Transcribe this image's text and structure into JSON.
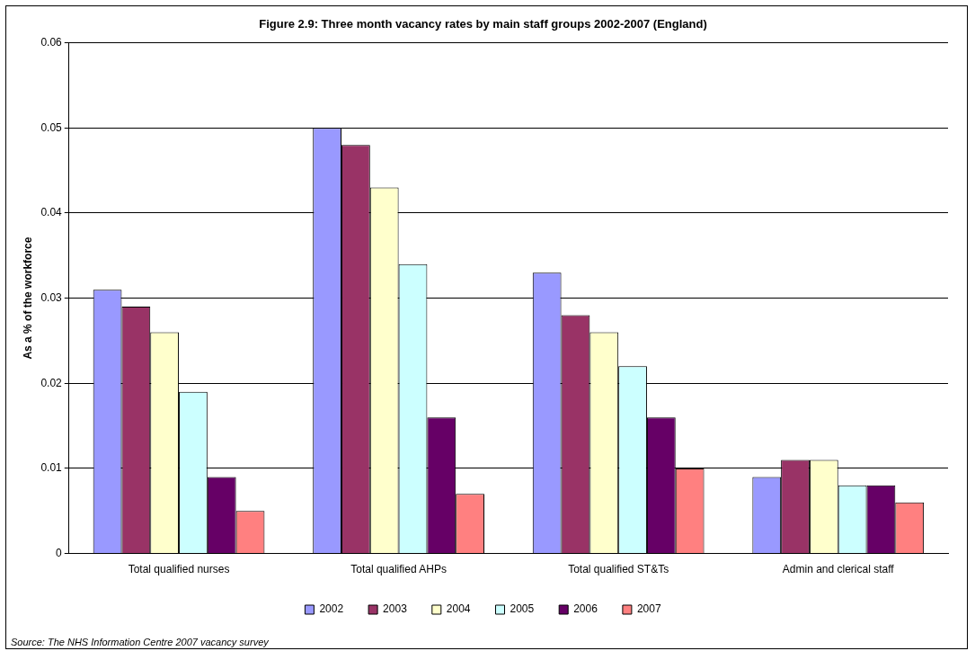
{
  "chart_data": {
    "type": "bar",
    "title": "Figure 2.9: Three month vacancy rates by main staff groups 2002-2007 (England)",
    "ylabel": "As a % of the workforce",
    "categories": [
      "Total qualified nurses",
      "Total qualified AHPs",
      "Total qualified ST&Ts",
      "Admin and clerical staff"
    ],
    "series": [
      {
        "name": "2002",
        "color": "#9999ff",
        "values": [
          0.031,
          0.05,
          0.033,
          0.009
        ]
      },
      {
        "name": "2003",
        "color": "#993366",
        "values": [
          0.029,
          0.048,
          0.028,
          0.011
        ]
      },
      {
        "name": "2004",
        "color": "#ffffcc",
        "values": [
          0.026,
          0.043,
          0.026,
          0.011
        ]
      },
      {
        "name": "2005",
        "color": "#ccffff",
        "values": [
          0.019,
          0.034,
          0.022,
          0.008
        ]
      },
      {
        "name": "2006",
        "color": "#660066",
        "values": [
          0.009,
          0.016,
          0.016,
          0.008
        ]
      },
      {
        "name": "2007",
        "color": "#ff8080",
        "values": [
          0.005,
          0.007,
          0.01,
          0.006
        ]
      }
    ],
    "ylim": [
      0,
      0.06
    ],
    "yticks": [
      0,
      0.01,
      0.02,
      0.03,
      0.04,
      0.05,
      0.06
    ],
    "grid": "y",
    "legend": "bottom",
    "annotations": [
      "Source: The NHS Information Centre 2007 vacancy survey"
    ]
  }
}
